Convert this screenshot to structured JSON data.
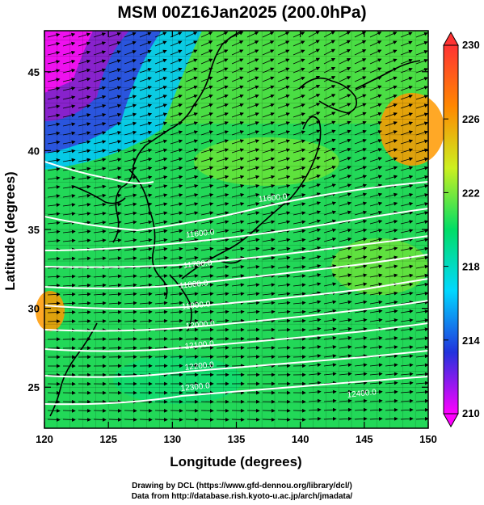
{
  "title": "MSM 00Z16Jan2025 (200.0hPa)",
  "credits": {
    "line1": "Drawing by DCL (https://www.gfd-dennou.org/library/dcl/)",
    "line2": "Data from http://database.rish.kyoto-u.ac.jp/arch/jmadata/"
  },
  "axes": {
    "xlabel": "Longitude (degrees)",
    "ylabel": "Latitude  (degrees)",
    "lon_range": [
      120,
      150
    ],
    "lat_range": [
      22.4,
      47.6
    ],
    "xticks": [
      "120",
      "125",
      "130",
      "135",
      "140",
      "145",
      "150"
    ],
    "yticks": [
      "25",
      "30",
      "35",
      "40",
      "45"
    ]
  },
  "colorbar": {
    "min": 210,
    "max": 230,
    "ticks": [
      "230",
      "226",
      "222",
      "218",
      "214",
      "210"
    ],
    "stops": [
      "#ff00ff",
      "#2233dd",
      "#00d8ff",
      "#00dd66",
      "#ccf020",
      "#ff8800",
      "#ff3333"
    ]
  },
  "contours": {
    "labels": [
      "11600.0",
      "11600.0",
      "11700.0",
      "11800.0",
      "11900.0",
      "12000.0",
      "12100.0",
      "12200.0",
      "12300.0",
      "12400.0"
    ],
    "color": "#ffffff"
  },
  "chart_data": {
    "type": "heatmap",
    "title": "MSM 00Z16Jan2025 (200.0hPa)",
    "xlabel": "Longitude (degrees)",
    "ylabel": "Latitude  (degrees)",
    "xlim": [
      120,
      150
    ],
    "ylim": [
      22.4,
      47.6
    ],
    "colorbar_range": [
      210,
      230
    ],
    "colorbar_ticks": [
      210,
      214,
      218,
      222,
      226,
      230
    ],
    "overlays": [
      "geopotential height contours",
      "wind vectors",
      "coastlines",
      "1-degree graticule"
    ],
    "contour_levels": [
      11600,
      11700,
      11800,
      11900,
      12000,
      12100,
      12200,
      12300,
      12400
    ]
  }
}
